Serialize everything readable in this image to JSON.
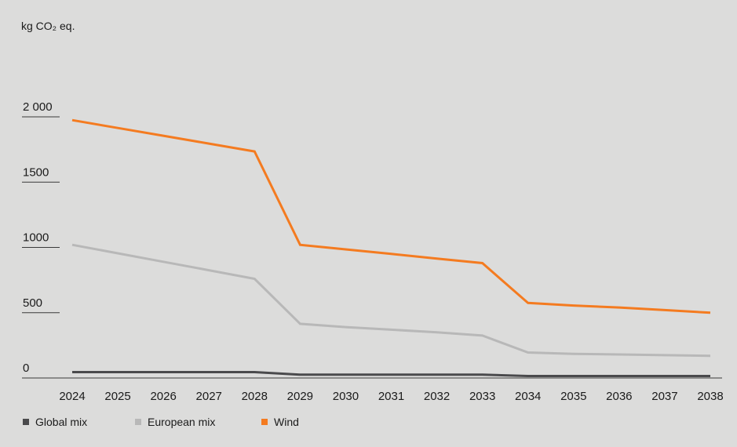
{
  "colors": {
    "background": "#dcdcdb",
    "global": "#4a4a4c",
    "european": "#b8b8b8",
    "wind": "#f47b20",
    "axis": "#3a3a3a",
    "text": "#1a1a1a"
  },
  "chart_data": {
    "type": "line",
    "title": "",
    "ylabel": "kg CO₂ eq.",
    "xlabel": "",
    "ylim": [
      0,
      2000
    ],
    "yticks": [
      "2 000",
      "1500",
      "1000",
      "500",
      "0"
    ],
    "ytick_values": [
      2000,
      1500,
      1000,
      500,
      0
    ],
    "x": [
      "2024",
      "2025",
      "2026",
      "2027",
      "2028",
      "2029",
      "2030",
      "2031",
      "2032",
      "2033",
      "2034",
      "2035",
      "2036",
      "2037",
      "2038"
    ],
    "legend_position": "bottom-left",
    "grid": false,
    "series": [
      {
        "name": "Global mix",
        "color_key": "global",
        "values": [
          45,
          45,
          45,
          45,
          45,
          25,
          25,
          25,
          25,
          25,
          15,
          15,
          15,
          15,
          15
        ]
      },
      {
        "name": "European mix",
        "color_key": "european",
        "values": [
          1020,
          955,
          890,
          825,
          760,
          415,
          390,
          370,
          350,
          325,
          195,
          185,
          180,
          175,
          170
        ]
      },
      {
        "name": "Wind",
        "color_key": "wind",
        "values": [
          1975,
          1915,
          1855,
          1795,
          1735,
          1020,
          985,
          950,
          915,
          880,
          575,
          555,
          540,
          520,
          500
        ]
      }
    ]
  }
}
